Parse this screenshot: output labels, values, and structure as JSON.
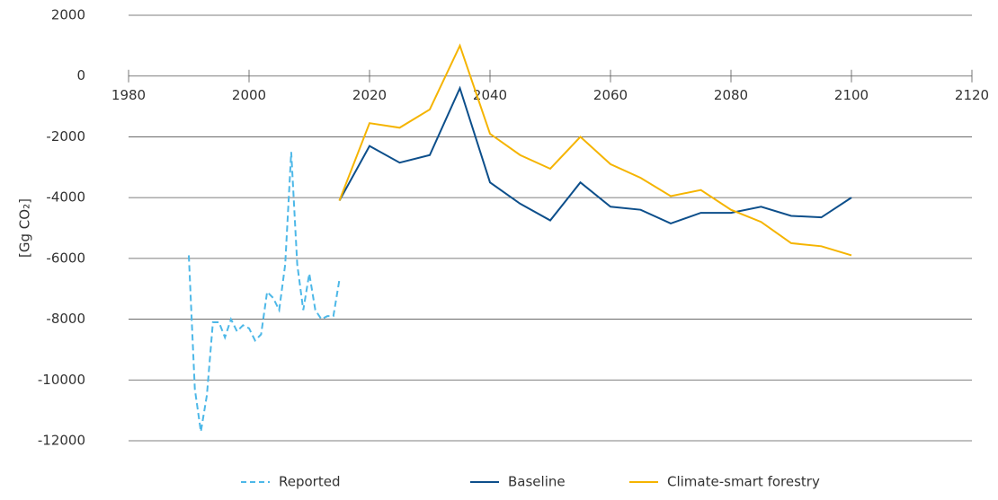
{
  "chart_data": {
    "type": "line",
    "y_label": "[Gg CO₂]",
    "xlim": [
      1980,
      2120
    ],
    "xticks": [
      1980,
      2000,
      2020,
      2040,
      2060,
      2080,
      2100,
      2120
    ],
    "ylim": [
      -12000,
      2000
    ],
    "yticks": [
      2000,
      0,
      -2000,
      -4000,
      -6000,
      -8000,
      -10000,
      -12000
    ],
    "grid": true,
    "series": [
      {
        "name": "Reported",
        "color": "#4db8e8",
        "dashed": true,
        "x": [
          1990,
          1991,
          1992,
          1993,
          1994,
          1995,
          1996,
          1997,
          1998,
          1999,
          2000,
          2001,
          2002,
          2003,
          2004,
          2005,
          2006,
          2007,
          2008,
          2009,
          2010,
          2011,
          2012,
          2013,
          2014,
          2015
        ],
        "values": [
          -5900,
          -10300,
          -11700,
          -10500,
          -8100,
          -8100,
          -8600,
          -8000,
          -8400,
          -8200,
          -8300,
          -8700,
          -8500,
          -7100,
          -7300,
          -7700,
          -6200,
          -2500,
          -6200,
          -7700,
          -6500,
          -7700,
          -8000,
          -7900,
          -7900,
          -6700
        ]
      },
      {
        "name": "Baseline",
        "color": "#0d4f8b",
        "dashed": false,
        "x": [
          2015,
          2020,
          2025,
          2030,
          2035,
          2040,
          2045,
          2050,
          2055,
          2060,
          2065,
          2070,
          2075,
          2080,
          2085,
          2090,
          2095,
          2100
        ],
        "values": [
          -4100,
          -2300,
          -2850,
          -2600,
          -400,
          -3500,
          -4200,
          -4750,
          -3500,
          -4300,
          -4400,
          -4850,
          -4500,
          -4500,
          -4300,
          -4600,
          -4650,
          -4000
        ]
      },
      {
        "name": "Climate-smart forestry",
        "color": "#f5b400",
        "dashed": false,
        "x": [
          2015,
          2020,
          2025,
          2030,
          2035,
          2040,
          2045,
          2050,
          2055,
          2060,
          2065,
          2070,
          2075,
          2080,
          2085,
          2090,
          2095,
          2100
        ],
        "values": [
          -4100,
          -1550,
          -1700,
          -1100,
          1000,
          -1900,
          -2600,
          -3050,
          -2000,
          -2900,
          -3350,
          -3950,
          -3750,
          -4400,
          -4800,
          -5500,
          -5600,
          -5900
        ]
      }
    ]
  }
}
